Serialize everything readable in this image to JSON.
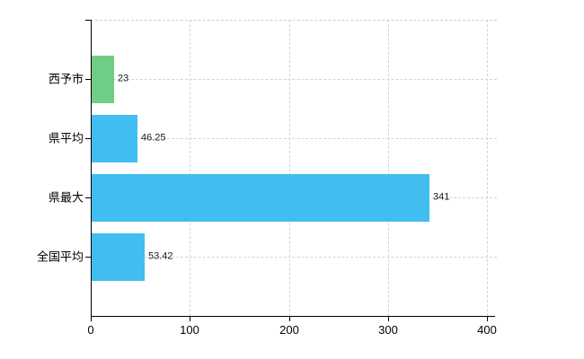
{
  "chart_data": {
    "type": "bar",
    "orientation": "horizontal",
    "title": "",
    "xlabel": "",
    "ylabel": "",
    "categories": [
      "西予市",
      "県平均",
      "県最大",
      "全国平均"
    ],
    "values": [
      23,
      46.25,
      341,
      53.42
    ],
    "value_labels": [
      "23",
      "46.25",
      "341",
      "53.42"
    ],
    "bar_colors": [
      "#6fce85",
      "#41beef",
      "#41beef",
      "#41beef"
    ],
    "x_ticks": [
      0,
      100,
      200,
      300,
      400
    ],
    "x_tick_labels": [
      "0",
      "100",
      "200",
      "300",
      "400"
    ],
    "xlim": [
      0,
      400
    ],
    "grid": true,
    "legend": false
  },
  "colors": {
    "background": "#ffffff",
    "axis": "#000000",
    "gridline": "#d4d4d4",
    "bar_green": "#6fce85",
    "bar_blue": "#41beef",
    "value_text": "#1a1a1a",
    "label_text": "#000000"
  }
}
